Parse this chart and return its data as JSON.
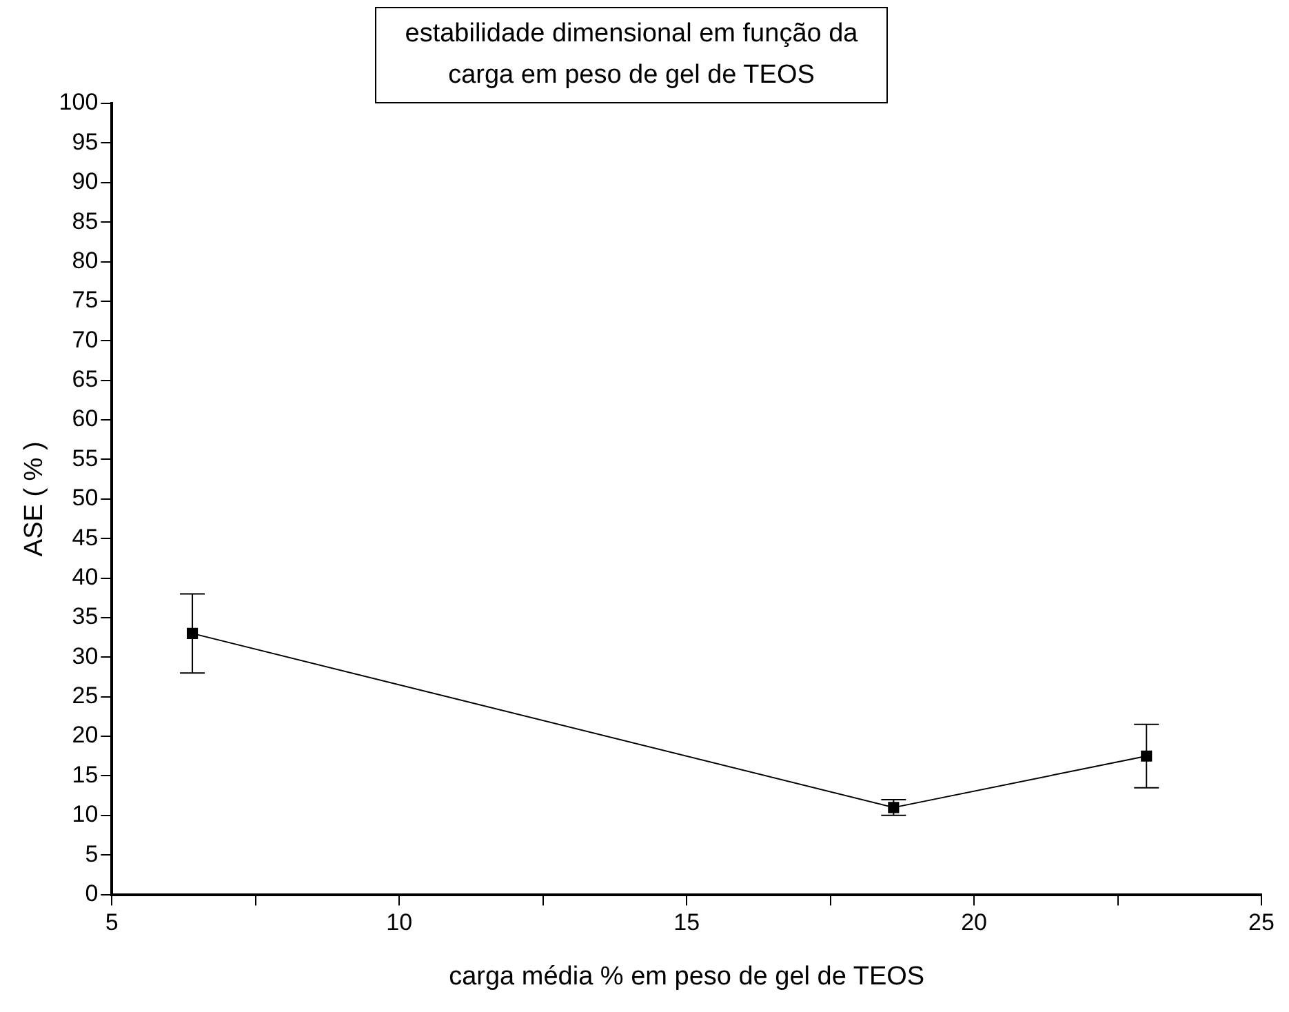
{
  "chart_data": {
    "type": "line",
    "title": "estabilidade dimensional em função da carga em peso de gel de TEOS",
    "xlabel": "carga média % em peso de gel de TEOS",
    "ylabel": "ASE ( % )",
    "x": [
      6.4,
      18.6,
      23.0
    ],
    "series": [
      {
        "color": "#000000",
        "values": [
          33,
          11,
          17.5
        ],
        "errors": [
          5,
          1,
          4
        ]
      }
    ],
    "xlim": [
      5,
      25
    ],
    "xticks": [
      5,
      {
        "value": 7.5,
        "label": null
      },
      10,
      {
        "value": 12.5,
        "label": null
      },
      15,
      {
        "value": 17.5,
        "label": null
      },
      20,
      {
        "value": 22.5,
        "label": null
      },
      25
    ],
    "ylim": [
      0,
      100
    ],
    "yticks": [
      0,
      5,
      10,
      15,
      20,
      25,
      30,
      35,
      40,
      45,
      50,
      55,
      60,
      65,
      70,
      75,
      80,
      85,
      90,
      95,
      100
    ],
    "grid": false,
    "legend": false,
    "marker": "square",
    "line_style": "solid"
  }
}
